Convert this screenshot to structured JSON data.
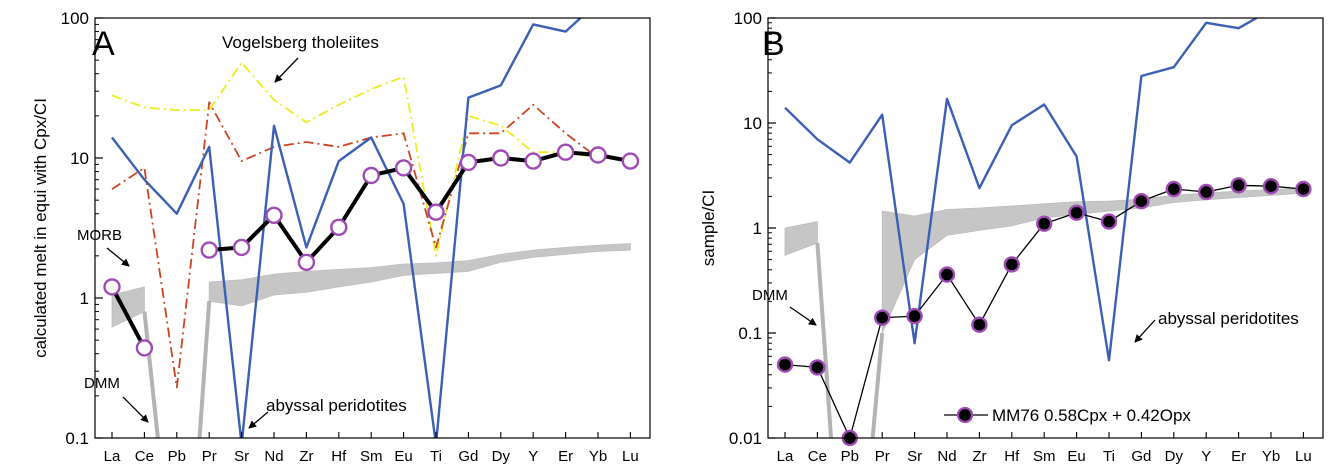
{
  "chart_data": [
    {
      "type": "line",
      "panel_label": "A",
      "yscale": "log",
      "ylim": [
        0.1,
        100
      ],
      "ylabel": "calculated melt in equi with Cpx/CI",
      "xlabel": "",
      "categories": [
        "La",
        "Ce",
        "Pb",
        "Pr",
        "Sr",
        "Nd",
        "Zr",
        "Hf",
        "Sm",
        "Eu",
        "Ti",
        "Gd",
        "Dy",
        "Y",
        "Er",
        "Yb",
        "Lu"
      ],
      "yticks": [
        {
          "v": 0.1,
          "label": "0.1"
        },
        {
          "v": 1,
          "label": "1"
        },
        {
          "v": 10,
          "label": "10"
        },
        {
          "v": 100,
          "label": "100"
        }
      ],
      "series": [
        {
          "role": "vogelsberg",
          "color": "#ecec1e",
          "style": "dashdot",
          "values": [
            28,
            23,
            22,
            22,
            48,
            26,
            18,
            24,
            31,
            38,
            2.0,
            20,
            17,
            11,
            11,
            10,
            null
          ]
        },
        {
          "role": "morb",
          "color": "#cc4422",
          "style": "dashdot",
          "values": [
            6,
            8.5,
            0.23,
            25,
            9.5,
            12,
            13,
            12,
            14,
            15,
            2.3,
            15,
            15,
            24,
            15,
            10,
            null
          ]
        },
        {
          "role": "abyssal",
          "color": "#3b5fb4",
          "style": "solid",
          "values": [
            14,
            7,
            4,
            12,
            0.09,
            17,
            2.3,
            9.5,
            14,
            4.7,
            0.09,
            27,
            33,
            90,
            80,
            130,
            null
          ]
        },
        {
          "role": "sample",
          "color": "#000000",
          "style": "markers",
          "values": [
            1.2,
            0.44,
            null,
            2.2,
            2.3,
            3.9,
            1.8,
            3.2,
            7.5,
            8.5,
            4.1,
            9.3,
            10,
            9.5,
            11,
            10.5,
            9.5
          ]
        }
      ],
      "dmm_band": {
        "lower": [
          0.62,
          0.8,
          null,
          0.95,
          0.88,
          1.05,
          1.1,
          1.2,
          1.3,
          1.45,
          1.5,
          1.55,
          1.8,
          1.95,
          2.05,
          2.15,
          2.2
        ],
        "upper": [
          1.05,
          1.2,
          null,
          1.3,
          1.35,
          1.48,
          1.55,
          1.6,
          1.65,
          1.75,
          1.78,
          1.85,
          2.05,
          2.2,
          2.3,
          2.38,
          2.45
        ]
      },
      "annotations": [
        {
          "text": "Vogelsberg tholeiites"
        },
        {
          "text": "MORB"
        },
        {
          "text": "DMM"
        },
        {
          "text": "abyssal peridotites"
        }
      ]
    },
    {
      "type": "line",
      "panel_label": "B",
      "yscale": "log",
      "ylim": [
        0.01,
        100
      ],
      "ylabel": "sample/CI",
      "xlabel": "",
      "categories": [
        "La",
        "Ce",
        "Pb",
        "Pr",
        "Sr",
        "Nd",
        "Zr",
        "Hf",
        "Sm",
        "Eu",
        "Ti",
        "Gd",
        "Dy",
        "Y",
        "Er",
        "Yb",
        "Lu"
      ],
      "yticks": [
        {
          "v": 0.01,
          "label": "0.01"
        },
        {
          "v": 0.1,
          "label": "0.1"
        },
        {
          "v": 1,
          "label": "1"
        },
        {
          "v": 10,
          "label": "10"
        },
        {
          "v": 100,
          "label": "100"
        }
      ],
      "series": [
        {
          "role": "abyssal",
          "color": "#3b5fb4",
          "style": "solid",
          "values": [
            14,
            7,
            4.2,
            12,
            0.08,
            17,
            2.4,
            9.5,
            15,
            4.8,
            0.055,
            28,
            34,
            90,
            80,
            120,
            null
          ]
        },
        {
          "role": "sample",
          "color": "#000000",
          "style": "markers",
          "name": "MM76 0.58Cpx + 0.42Opx",
          "values": [
            0.05,
            0.047,
            0.01,
            0.14,
            0.145,
            0.36,
            0.12,
            0.45,
            1.1,
            1.4,
            1.15,
            1.8,
            2.35,
            2.2,
            2.55,
            2.5,
            2.35
          ]
        }
      ],
      "dmm_band": {
        "lower": [
          0.55,
          0.72,
          null,
          0.1,
          0.5,
          0.85,
          0.95,
          1.05,
          1.25,
          1.35,
          1.45,
          1.55,
          1.75,
          1.85,
          1.95,
          2.05,
          2.15
        ],
        "upper": [
          1.0,
          1.15,
          null,
          1.45,
          1.3,
          1.5,
          1.55,
          1.62,
          1.7,
          1.78,
          1.8,
          1.88,
          2.05,
          2.15,
          2.25,
          2.32,
          2.4
        ]
      },
      "annotations": [
        {
          "text": "DMM"
        },
        {
          "text": "abyssal peridotites"
        }
      ]
    }
  ]
}
